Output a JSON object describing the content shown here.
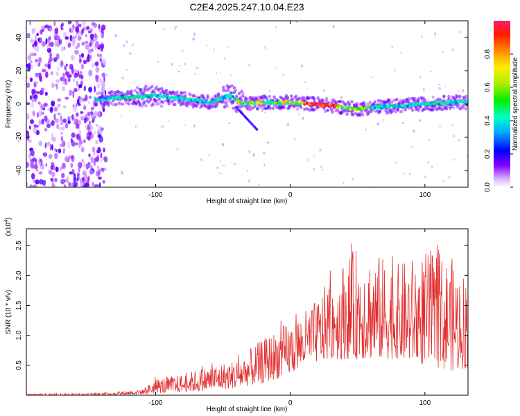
{
  "title": "C2E4.2025.247.10.04.E23",
  "chart_data": [
    {
      "type": "heatmap",
      "name": "spectrogram",
      "xlabel": "Height of straight line (km)",
      "ylabel": "Frequency (Hz)",
      "xlim": [
        -196,
        132
      ],
      "ylim": [
        -50,
        50
      ],
      "xticks": [
        -100,
        0,
        100
      ],
      "yticks": [
        -40,
        -20,
        0,
        20,
        40
      ],
      "colorbar": {
        "label": "Normalized spectral amplitude",
        "range": [
          0,
          1
        ],
        "ticks": [
          0.0,
          0.2,
          0.4,
          0.6,
          0.8
        ]
      },
      "ridge": {
        "description_points_x": [
          -140,
          -120,
          -100,
          -80,
          -60,
          -45,
          -35,
          -20,
          0,
          20,
          40,
          50,
          60,
          80,
          100,
          120,
          132
        ],
        "description_points_y": [
          3,
          4,
          5,
          3,
          1,
          5,
          0,
          1,
          1,
          0,
          -2,
          -3,
          -2,
          -1,
          0,
          1,
          1
        ]
      }
    },
    {
      "type": "line",
      "name": "snr",
      "xlabel": "Height of straight line (km)",
      "ylabel": "SNR (10 * v/v)",
      "multiplier": "(x10",
      "multiplier_exp": "4",
      "multiplier_close": ")",
      "xlim": [
        -196,
        132
      ],
      "ylim": [
        0,
        2.78
      ],
      "xticks": [
        -100,
        0,
        100
      ],
      "yticks": [
        0.5,
        1.0,
        1.5,
        2.0,
        2.5
      ],
      "envelope_x": [
        -196,
        -150,
        -130,
        -110,
        -100,
        -80,
        -60,
        -40,
        -20,
        0,
        10,
        20,
        30,
        40,
        50,
        60,
        80,
        100,
        120,
        132
      ],
      "envelope_lo": [
        0.0,
        0.0,
        0.0,
        0.02,
        0.03,
        0.05,
        0.08,
        0.12,
        0.2,
        0.35,
        0.5,
        0.55,
        0.6,
        0.6,
        0.6,
        0.6,
        0.6,
        0.5,
        0.4,
        0.45
      ],
      "envelope_hi": [
        0.03,
        0.03,
        0.06,
        0.1,
        0.28,
        0.35,
        0.5,
        0.6,
        0.95,
        1.25,
        1.4,
        1.6,
        2.0,
        2.25,
        2.5,
        2.4,
        2.2,
        2.4,
        2.3,
        2.0
      ],
      "color": "#e22d2d"
    }
  ]
}
